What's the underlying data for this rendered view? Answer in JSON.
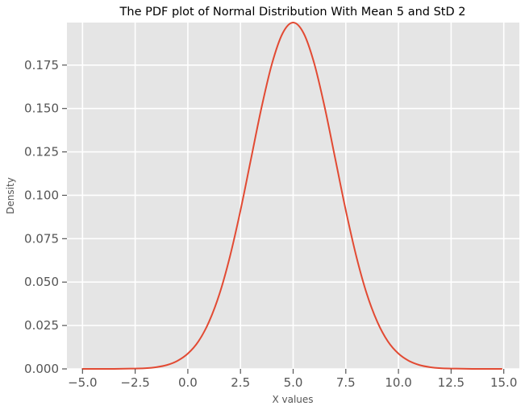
{
  "chart_data": {
    "type": "line",
    "title": "The PDF plot of Normal Distribution With Mean 5 and StD 2",
    "xlabel": "X values",
    "ylabel": "Density",
    "xlim": [
      -5.74,
      15.74
    ],
    "ylim": [
      0,
      0.1995
    ],
    "xticks": [
      -5.0,
      -2.5,
      0.0,
      2.5,
      5.0,
      7.5,
      10.0,
      12.5,
      15.0
    ],
    "xtick_labels": [
      "−5.0",
      "−2.5",
      "0.0",
      "2.5",
      "5.0",
      "7.5",
      "10.0",
      "12.5",
      "15.0"
    ],
    "yticks": [
      0.0,
      0.025,
      0.05,
      0.075,
      0.1,
      0.125,
      0.15,
      0.175
    ],
    "ytick_labels": [
      "0.000",
      "0.025",
      "0.050",
      "0.075",
      "0.100",
      "0.125",
      "0.150",
      "0.175"
    ],
    "grid": true,
    "series": [
      {
        "color": "#E24A33",
        "x": [
          -5.0,
          -4.5,
          -4.0,
          -3.5,
          -3.0,
          -2.5,
          -2.0,
          -1.5,
          -1.0,
          -0.5,
          0.0,
          0.5,
          1.0,
          1.5,
          2.0,
          2.5,
          3.0,
          3.5,
          4.0,
          4.5,
          5.0,
          5.5,
          6.0,
          6.5,
          7.0,
          7.5,
          8.0,
          8.5,
          9.0,
          9.5,
          10.0,
          10.5,
          11.0,
          11.5,
          12.0,
          12.5,
          13.0,
          13.5,
          14.0,
          14.5,
          14.9
        ],
        "y": [
          0.0,
          0.0,
          0.0,
          0.0,
          0.0001,
          0.0002,
          0.0004,
          0.001,
          0.0022,
          0.0046,
          0.0088,
          0.0158,
          0.027,
          0.0431,
          0.0648,
          0.0913,
          0.121,
          0.1506,
          0.176,
          0.1933,
          0.1995,
          0.1933,
          0.176,
          0.1506,
          0.121,
          0.0913,
          0.0648,
          0.0431,
          0.027,
          0.0158,
          0.0088,
          0.0046,
          0.0022,
          0.001,
          0.0004,
          0.0002,
          0.0001,
          0.0,
          0.0,
          0.0,
          0.0
        ]
      }
    ]
  },
  "style": {
    "plot_background": "#E5E5E5",
    "grid_color": "#FFFFFF",
    "tick_text_color": "#555555",
    "title_color": "#000000"
  }
}
